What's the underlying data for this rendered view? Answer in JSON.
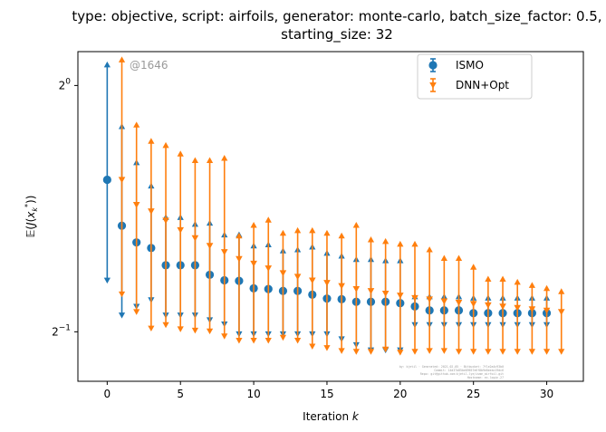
{
  "chart_data": {
    "type": "scatter",
    "title_line1": "type: objective, script: airfoils, generator: monte-carlo, batch_size_factor: 0.5,",
    "title_line2": "starting_size: 32",
    "xlabel": "Iteration k",
    "xlabel_prefix": "Iteration ",
    "xlabel_var": "k",
    "ylabel": "E(J(x_k^*))",
    "y_scale": "log2",
    "xlim": [
      -2,
      32.5
    ],
    "ylim": [
      0.435,
      1.1
    ],
    "x_ticks": [
      0,
      5,
      10,
      15,
      20,
      25,
      30
    ],
    "y_ticks": [
      {
        "value": 1.0,
        "base": "2",
        "exp": "0"
      },
      {
        "value": 0.5,
        "base": "2",
        "exp": "−1"
      }
    ],
    "grid": false,
    "legend_position": "upper right",
    "annotation": "@1646",
    "fine_print": [
      "by: kjetil · Generated: 2021-02-05 · Bitbucket: 7f1e2a4c93b0",
      "Commit: 14d37a85be89657e6f8b9e8eeac19dc6",
      "Repo: git@github.com:kjetil-lye/isme_airfoil.git",
      "Hostname: ec.login.27"
    ],
    "series": [
      {
        "name": "ISMO",
        "color": "#1f77b4",
        "marker": "circle",
        "x": [
          0,
          1,
          2,
          3,
          4,
          5,
          6,
          7,
          8,
          9,
          10,
          11,
          12,
          13,
          14,
          15,
          16,
          17,
          18,
          19,
          20,
          21,
          22,
          23,
          24,
          25,
          26,
          27,
          28,
          29,
          30
        ],
        "y": [
          0.767,
          0.674,
          0.643,
          0.633,
          0.603,
          0.603,
          0.603,
          0.587,
          0.578,
          0.577,
          0.565,
          0.564,
          0.561,
          0.561,
          0.555,
          0.549,
          0.548,
          0.544,
          0.544,
          0.544,
          0.542,
          0.537,
          0.531,
          0.531,
          0.531,
          0.527,
          0.527,
          0.527,
          0.527,
          0.527,
          0.527
        ],
        "y_upper": [
          1.06,
          0.891,
          0.805,
          0.754,
          0.69,
          0.69,
          0.677,
          0.679,
          0.657,
          0.657,
          0.637,
          0.639,
          0.628,
          0.63,
          0.635,
          0.624,
          0.619,
          0.613,
          0.613,
          0.611,
          0.611,
          0.552,
          0.552,
          0.552,
          0.552,
          0.55,
          0.55,
          0.55,
          0.55,
          0.55,
          0.55
        ],
        "y_lower": [
          0.578,
          0.524,
          0.537,
          0.547,
          0.524,
          0.524,
          0.524,
          0.517,
          0.511,
          0.497,
          0.497,
          0.497,
          0.497,
          0.497,
          0.497,
          0.497,
          0.49,
          0.482,
          0.475,
          0.475,
          0.475,
          0.51,
          0.51,
          0.51,
          0.51,
          0.51,
          0.51,
          0.51,
          0.51,
          0.51,
          0.51
        ]
      },
      {
        "name": "DNN+Opt",
        "color": "#ff7f0e",
        "marker": "triangle-down",
        "x": [
          1,
          2,
          3,
          4,
          5,
          6,
          7,
          8,
          9,
          10,
          11,
          12,
          13,
          14,
          15,
          16,
          17,
          18,
          19,
          20,
          21,
          22,
          23,
          24,
          25,
          26,
          27,
          28,
          29,
          30,
          31
        ],
        "y": [
          0.767,
          0.715,
          0.702,
          0.684,
          0.666,
          0.651,
          0.637,
          0.626,
          0.614,
          0.606,
          0.598,
          0.59,
          0.584,
          0.578,
          0.574,
          0.569,
          0.564,
          0.561,
          0.557,
          0.554,
          0.55,
          0.548,
          0.545,
          0.543,
          0.541,
          0.539,
          0.537,
          0.535,
          0.533,
          0.531,
          0.529
        ],
        "y_upper": [
          1.075,
          0.895,
          0.855,
          0.845,
          0.825,
          0.81,
          0.81,
          0.815,
          0.655,
          0.675,
          0.685,
          0.66,
          0.665,
          0.665,
          0.66,
          0.655,
          0.675,
          0.648,
          0.645,
          0.64,
          0.64,
          0.63,
          0.615,
          0.615,
          0.6,
          0.58,
          0.58,
          0.575,
          0.57,
          0.565,
          0.56
        ],
        "y_lower": [
          0.556,
          0.529,
          0.505,
          0.51,
          0.504,
          0.502,
          0.501,
          0.494,
          0.488,
          0.488,
          0.488,
          0.492,
          0.488,
          0.48,
          0.478,
          0.474,
          0.473,
          0.473,
          0.476,
          0.472,
          0.473,
          0.474,
          0.474,
          0.473,
          0.473,
          0.473,
          0.473,
          0.473,
          0.473,
          0.473,
          0.473
        ]
      }
    ]
  }
}
